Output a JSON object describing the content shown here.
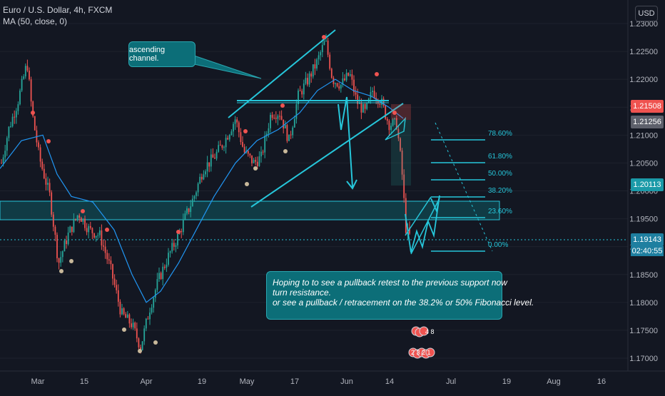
{
  "legend": {
    "symbol_line": "Euro / U.S. Dollar, 4h, FXCM",
    "indicator_line": "MA (50, close, 0)"
  },
  "currency_button": "USD",
  "annotations": {
    "channel_label": "ascending channel.",
    "note_lines": [
      "Hoping to to see a pullback retest to the previous support now",
      "turn resistance.",
      "or see a pullback / retracement on the 38.2%  or 50% Fibonacci level."
    ]
  },
  "price_axis": {
    "ticks": [
      "1.23000",
      "1.22500",
      "1.22000",
      "1.21500",
      "1.21000",
      "1.20500",
      "1.20000",
      "1.19500",
      "1.19000",
      "1.18500",
      "1.18000",
      "1.17500",
      "1.17000"
    ],
    "price_labels": {
      "red": "1.21508",
      "gray": "1.21256",
      "teal": "1.20113",
      "current": "1.19143",
      "countdown": "02:40:55"
    }
  },
  "time_axis": {
    "ticks": [
      "Mar",
      "15",
      "Apr",
      "19",
      "May",
      "17",
      "Jun",
      "14",
      "Jul",
      "19",
      "Aug",
      "16"
    ]
  },
  "fibonacci": [
    {
      "level": "78.60%"
    },
    {
      "level": "61.80%"
    },
    {
      "level": "50.00%"
    },
    {
      "level": "38.20%"
    },
    {
      "level": "23.60%"
    },
    {
      "level": "0.00%"
    }
  ],
  "events": {
    "top_cluster": "4 8",
    "bottom_cluster": "2 3 2 1"
  },
  "colors": {
    "background": "#131722",
    "bull": "#26a69a",
    "bear": "#ef5350",
    "ma": "#2196f3",
    "drawing": "#26c6da",
    "zone_fill": "#0e5a63"
  }
}
